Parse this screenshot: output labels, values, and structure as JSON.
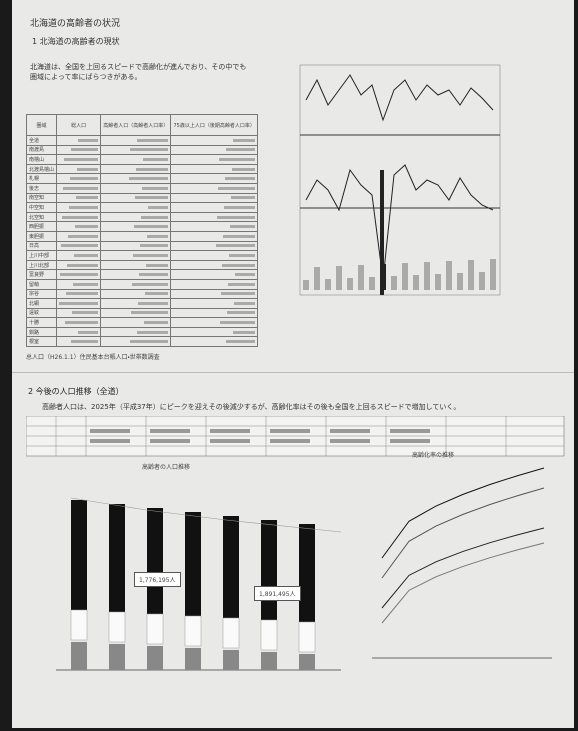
{
  "header": {
    "title": "北海道の高齢者の状況",
    "section1": "1 北海道の高齢者の現状"
  },
  "intro": "北海道は、全国を上回るスピードで高齢化が進んでおり、その中でも圏域によって率にばらつきがある。",
  "table": {
    "headers": [
      "圏域",
      "総人口",
      "高齢者人口（高齢者人口率）",
      "75歳以上人口（後期高齢者人口率）"
    ],
    "rows": [
      "全道",
      "南渡島",
      "南檜山",
      "北渡島檜山",
      "札幌",
      "後志",
      "南空知",
      "中空知",
      "北空知",
      "西胆振",
      "東胆振",
      "日高",
      "上川中部",
      "上川北部",
      "富良野",
      "留萌",
      "宗谷",
      "北網",
      "遠紋",
      "十勝",
      "釧路",
      "根室"
    ]
  },
  "table_note": "总人口（H26.1.1）住民基本台帳人口・世帯数調査",
  "section2": {
    "title": "2 今後の人口推移（全道）",
    "text": "高齢者人口は、2025年（平成37年）にピークを迎えその後減少するが、高齢化率はその後も全国を上回るスピードで増加していく。",
    "chart_left_title": "高齢者の人口推移",
    "chart_right_title": "高齢化率の推移",
    "callout_1": "1,776,195人",
    "callout_2": "1,891,495人"
  }
}
